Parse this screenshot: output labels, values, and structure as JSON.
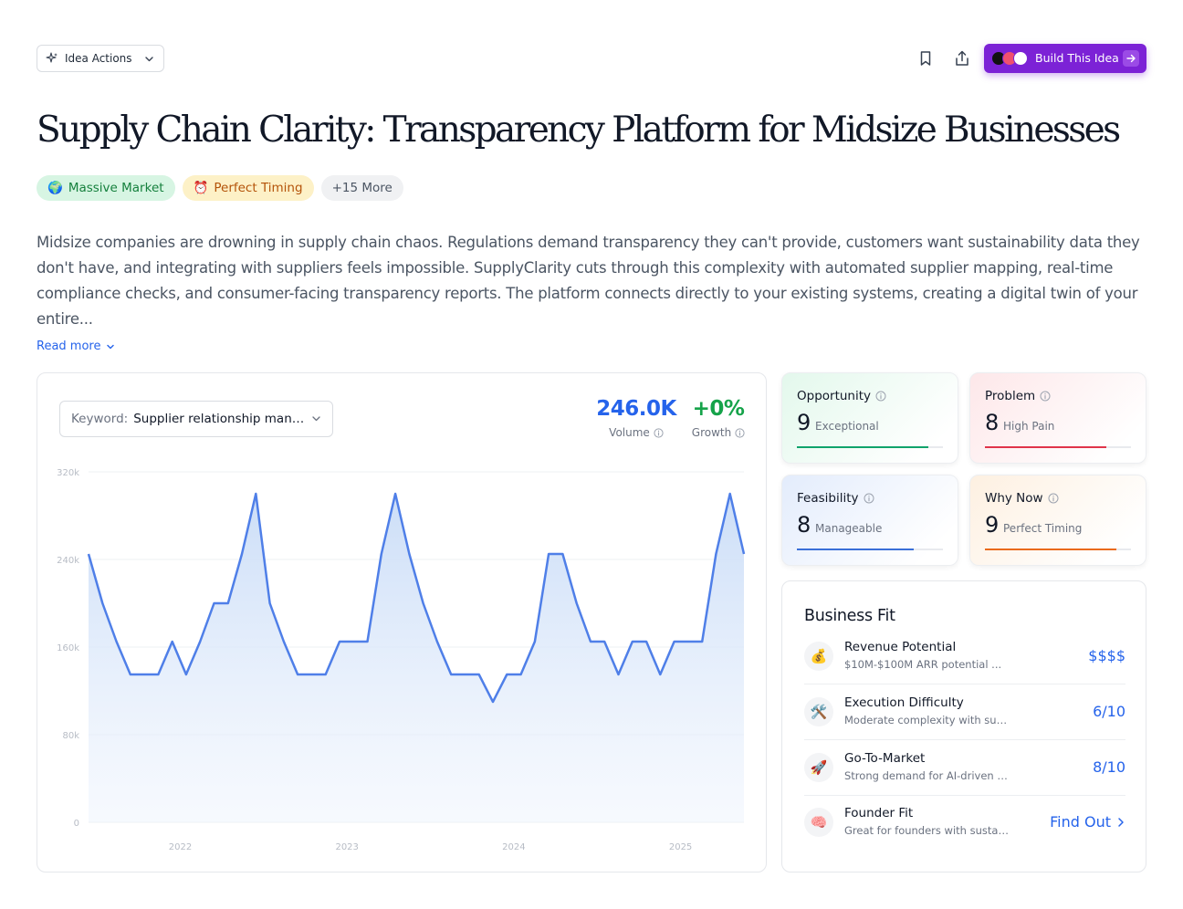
{
  "toolbar": {
    "idea_actions_label": "Idea Actions",
    "build_label": "Build This Idea"
  },
  "title": "Supply Chain Clarity: Transparency Platform for Midsize Businesses",
  "chips": [
    {
      "emoji": "🌍",
      "label": "Massive Market"
    },
    {
      "emoji": "⏰",
      "label": "Perfect Timing"
    },
    {
      "label": "+15 More"
    }
  ],
  "description": "Midsize companies are drowning in supply chain chaos. Regulations demand transparency they can't provide, customers want sustainability data they don't have, and integrating with suppliers feels impossible. SupplyClarity cuts through this complexity with automated supplier mapping, real-time compliance checks, and consumer-facing transparency reports. The platform connects directly to your existing systems, creating a digital twin of your entire...",
  "read_more": "Read more",
  "keyword": {
    "label": "Keyword:",
    "value": "Supplier relationship management software"
  },
  "metrics": {
    "volume_value": "246.0K",
    "volume_label": "Volume",
    "growth_value": "+0%",
    "growth_label": "Growth"
  },
  "chart_data": {
    "type": "area",
    "y_ticks": [
      "320k",
      "240k",
      "160k",
      "80k",
      "0"
    ],
    "x_ticks": [
      "2022",
      "2023",
      "2024",
      "2025"
    ],
    "ylim": [
      0,
      320000
    ],
    "x_start": 2021.45,
    "x_end": 2025.38,
    "series": [
      {
        "color": "#4f7fe8",
        "values": [
          245000,
          200000,
          165000,
          135000,
          135000,
          135000,
          165000,
          135000,
          165000,
          200000,
          200000,
          245000,
          300000,
          200000,
          165000,
          135000,
          135000,
          135000,
          165000,
          165000,
          165000,
          245000,
          300000,
          245000,
          200000,
          165000,
          135000,
          135000,
          135000,
          110000,
          135000,
          135000,
          165000,
          245000,
          245000,
          200000,
          165000,
          165000,
          135000,
          165000,
          165000,
          135000,
          165000,
          165000,
          165000,
          245000,
          300000,
          245000
        ]
      }
    ]
  },
  "scores": [
    {
      "title": "Opportunity",
      "value": "9",
      "sub": "Exceptional",
      "fraction": 0.9,
      "color": "#10a36b",
      "bg": "#e3f8ec"
    },
    {
      "title": "Problem",
      "value": "8",
      "sub": "High Pain",
      "fraction": 0.83,
      "color": "#e0344a",
      "bg": "#fde7e9"
    },
    {
      "title": "Feasibility",
      "value": "8",
      "sub": "Manageable",
      "fraction": 0.8,
      "color": "#3a6fd8",
      "bg": "#e3ecfc"
    },
    {
      "title": "Why Now",
      "value": "9",
      "sub": "Perfect Timing",
      "fraction": 0.9,
      "color": "#ea6a1c",
      "bg": "#fdf0e1"
    }
  ],
  "business_fit": {
    "title": "Business Fit",
    "rows": [
      {
        "emoji": "💰",
        "name": "Revenue Potential",
        "sub": "$10M-$100M ARR potential ...",
        "right": "$$$$"
      },
      {
        "emoji": "🛠️",
        "name": "Execution Difficulty",
        "sub": "Moderate complexity with sust...",
        "right": "6/10"
      },
      {
        "emoji": "🚀",
        "name": "Go-To-Market",
        "sub": "Strong demand for AI-driven tr...",
        "right": "8/10"
      },
      {
        "emoji": "🧠",
        "name": "Founder Fit",
        "sub": "Great for founders with sustain...",
        "right": "Find Out"
      }
    ]
  }
}
